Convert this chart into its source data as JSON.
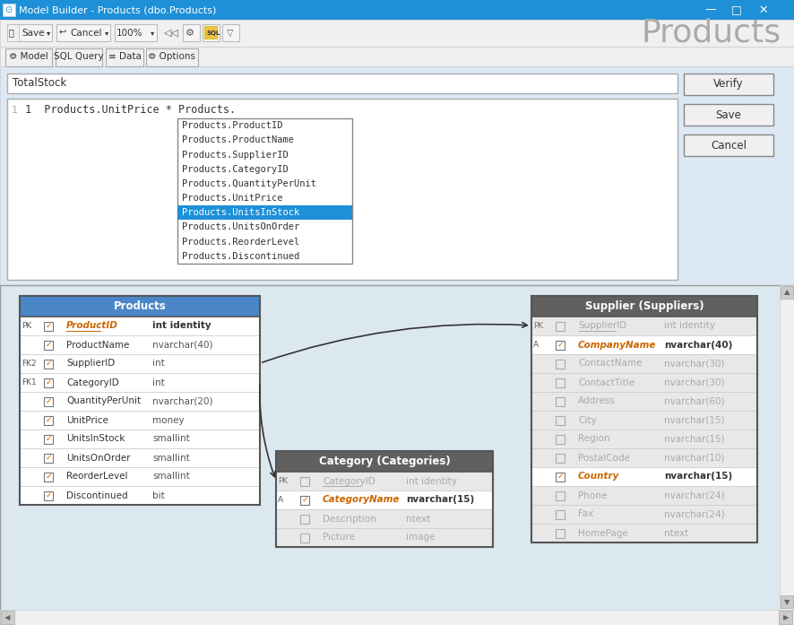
{
  "title_bar_text": "Model Builder - Products (dbo.Products)",
  "title_bar_color": "#1e90d8",
  "title_bar_text_color": "#ffffff",
  "bg_color": "#f0f0f0",
  "formula_panel_bg": "#dce9f5",
  "lower_panel_bg": "#dce8f0",
  "formula_name": "TotalStock",
  "formula_code": "1  Products.UnitPrice * Products.",
  "dropdown_items": [
    "Products.ProductID",
    "Products.ProductName",
    "Products.SupplierID",
    "Products.CategoryID",
    "Products.QuantityPerUnit",
    "Products.UnitPrice",
    "Products.UnitsInStock",
    "Products.UnitsOnOrder",
    "Products.ReorderLevel",
    "Products.Discontinued"
  ],
  "dropdown_selected_idx": 6,
  "dropdown_selected_bg": "#1e90d8",
  "btn_verify": "Verify",
  "btn_save": "Save",
  "btn_cancel": "Cancel",
  "products_table_header_bg": "#4a86c8",
  "supplier_table_header_bg": "#606060",
  "category_table_header_bg": "#606060",
  "products_table": {
    "header_text": "Products",
    "rows": [
      {
        "pk": "PK",
        "fk": "",
        "checked": true,
        "bold": true,
        "underline": true,
        "name": "ProductID",
        "type": "int identity"
      },
      {
        "pk": "",
        "fk": "",
        "checked": true,
        "bold": false,
        "underline": false,
        "name": "ProductName",
        "type": "nvarchar(40)"
      },
      {
        "pk": "",
        "fk": "FK2",
        "checked": true,
        "bold": false,
        "underline": false,
        "name": "SupplierID",
        "type": "int"
      },
      {
        "pk": "",
        "fk": "FK1",
        "checked": true,
        "bold": false,
        "underline": false,
        "name": "CategoryID",
        "type": "int"
      },
      {
        "pk": "",
        "fk": "",
        "checked": true,
        "bold": false,
        "underline": false,
        "name": "QuantityPerUnit",
        "type": "nvarchar(20)"
      },
      {
        "pk": "",
        "fk": "",
        "checked": true,
        "bold": false,
        "underline": false,
        "name": "UnitPrice",
        "type": "money"
      },
      {
        "pk": "",
        "fk": "",
        "checked": true,
        "bold": false,
        "underline": false,
        "name": "UnitsInStock",
        "type": "smallint"
      },
      {
        "pk": "",
        "fk": "",
        "checked": true,
        "bold": false,
        "underline": false,
        "name": "UnitsOnOrder",
        "type": "smallint"
      },
      {
        "pk": "",
        "fk": "",
        "checked": true,
        "bold": false,
        "underline": false,
        "name": "ReorderLevel",
        "type": "smallint"
      },
      {
        "pk": "",
        "fk": "",
        "checked": true,
        "bold": false,
        "underline": false,
        "name": "Discontinued",
        "type": "bit"
      }
    ]
  },
  "supplier_table": {
    "header_text": "Supplier (Suppliers)",
    "rows": [
      {
        "pk": "PK",
        "fk": "",
        "checked": false,
        "bold": false,
        "underline": true,
        "name": "SupplierID",
        "type": "int identity",
        "greyed": true
      },
      {
        "pk": "",
        "fk": "A",
        "checked": true,
        "bold": true,
        "underline": false,
        "name": "CompanyName",
        "type": "nvarchar(40)",
        "greyed": false
      },
      {
        "pk": "",
        "fk": "",
        "checked": false,
        "bold": false,
        "underline": false,
        "name": "ContactName",
        "type": "nvarchar(30)",
        "greyed": true
      },
      {
        "pk": "",
        "fk": "",
        "checked": false,
        "bold": false,
        "underline": false,
        "name": "ContactTitle",
        "type": "nvarchar(30)",
        "greyed": true
      },
      {
        "pk": "",
        "fk": "",
        "checked": false,
        "bold": false,
        "underline": false,
        "name": "Address",
        "type": "nvarchar(60)",
        "greyed": true
      },
      {
        "pk": "",
        "fk": "",
        "checked": false,
        "bold": false,
        "underline": false,
        "name": "City",
        "type": "nvarchar(15)",
        "greyed": true
      },
      {
        "pk": "",
        "fk": "",
        "checked": false,
        "bold": false,
        "underline": false,
        "name": "Region",
        "type": "nvarchar(15)",
        "greyed": true
      },
      {
        "pk": "",
        "fk": "",
        "checked": false,
        "bold": false,
        "underline": false,
        "name": "PostalCode",
        "type": "nvarchar(10)",
        "greyed": true
      },
      {
        "pk": "",
        "fk": "",
        "checked": true,
        "bold": true,
        "underline": false,
        "name": "Country",
        "type": "nvarchar(15)",
        "greyed": false
      },
      {
        "pk": "",
        "fk": "",
        "checked": false,
        "bold": false,
        "underline": false,
        "name": "Phone",
        "type": "nvarchar(24)",
        "greyed": true
      },
      {
        "pk": "",
        "fk": "",
        "checked": false,
        "bold": false,
        "underline": false,
        "name": "Fax",
        "type": "nvarchar(24)",
        "greyed": true
      },
      {
        "pk": "",
        "fk": "",
        "checked": false,
        "bold": false,
        "underline": false,
        "name": "HomePage",
        "type": "ntext",
        "greyed": true
      }
    ]
  },
  "category_table": {
    "header_text": "Category (Categories)",
    "rows": [
      {
        "pk": "PK",
        "fk": "",
        "checked": false,
        "bold": false,
        "underline": true,
        "name": "CategoryID",
        "type": "int identity",
        "greyed": true
      },
      {
        "pk": "",
        "fk": "A",
        "checked": true,
        "bold": true,
        "underline": false,
        "name": "CategoryName",
        "type": "nvarchar(15)",
        "greyed": false
      },
      {
        "pk": "",
        "fk": "",
        "checked": false,
        "bold": false,
        "underline": false,
        "name": "Description",
        "type": "ntext",
        "greyed": true
      },
      {
        "pk": "",
        "fk": "",
        "checked": false,
        "bold": false,
        "underline": false,
        "name": "Picture",
        "type": "image",
        "greyed": true
      }
    ]
  }
}
